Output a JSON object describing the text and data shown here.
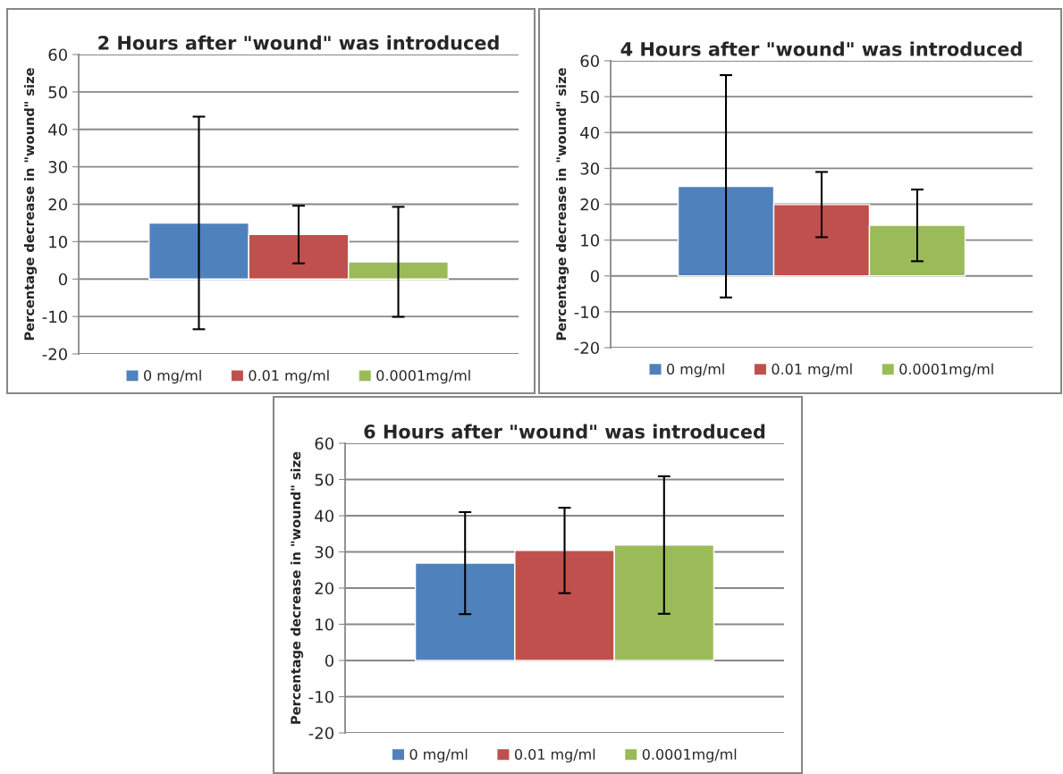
{
  "chart_data": [
    {
      "type": "bar",
      "title": "2 Hours after \"wound\" was introduced",
      "ylabel": "Percentage decrease in \"wound\" size",
      "categories": [
        null
      ],
      "ylim": [
        -20,
        60
      ],
      "yticks": [
        -20,
        -10,
        0,
        10,
        20,
        30,
        40,
        50,
        60
      ],
      "grid": "y",
      "legend": "bottom",
      "series": [
        {
          "name": "0 mg/ml",
          "color": "#4f81bd",
          "values": [
            15.0
          ],
          "errors": [
            28.4
          ]
        },
        {
          "name": "0.01 mg/ml",
          "color": "#c0504d",
          "values": [
            11.9
          ],
          "errors": [
            7.7
          ]
        },
        {
          "name": "0.0001mg/ml",
          "color": "#9bbb59",
          "values": [
            4.6
          ],
          "errors": [
            14.7
          ]
        }
      ]
    },
    {
      "type": "bar",
      "title": "4 Hours after \"wound\" was introduced",
      "ylabel": "Percentage decrease in \"wound\" size",
      "categories": [
        null
      ],
      "ylim": [
        -20,
        60
      ],
      "yticks": [
        -20,
        -10,
        0,
        10,
        20,
        30,
        40,
        50,
        60
      ],
      "grid": "y",
      "legend": "bottom",
      "series": [
        {
          "name": "0 mg/ml",
          "color": "#4f81bd",
          "values": [
            25.0
          ],
          "errors": [
            31.0
          ]
        },
        {
          "name": "0.01 mg/ml",
          "color": "#c0504d",
          "values": [
            19.9
          ],
          "errors": [
            9.1
          ]
        },
        {
          "name": "0.0001mg/ml",
          "color": "#9bbb59",
          "values": [
            14.1
          ],
          "errors": [
            10.0
          ]
        }
      ]
    },
    {
      "type": "bar",
      "title": "6 Hours after \"wound\" was introduced",
      "ylabel": "Percentage decrease in \"wound\" size",
      "categories": [
        null
      ],
      "ylim": [
        -20,
        60
      ],
      "yticks": [
        -20,
        -10,
        0,
        10,
        20,
        30,
        40,
        50,
        60
      ],
      "grid": "y",
      "legend": "bottom",
      "series": [
        {
          "name": "0 mg/ml",
          "color": "#4f81bd",
          "values": [
            26.9
          ],
          "errors": [
            14.1
          ]
        },
        {
          "name": "0.01 mg/ml",
          "color": "#c0504d",
          "values": [
            30.4
          ],
          "errors": [
            11.8
          ]
        },
        {
          "name": "0.0001mg/ml",
          "color": "#9bbb59",
          "values": [
            31.9
          ],
          "errors": [
            19.0
          ]
        }
      ]
    }
  ]
}
